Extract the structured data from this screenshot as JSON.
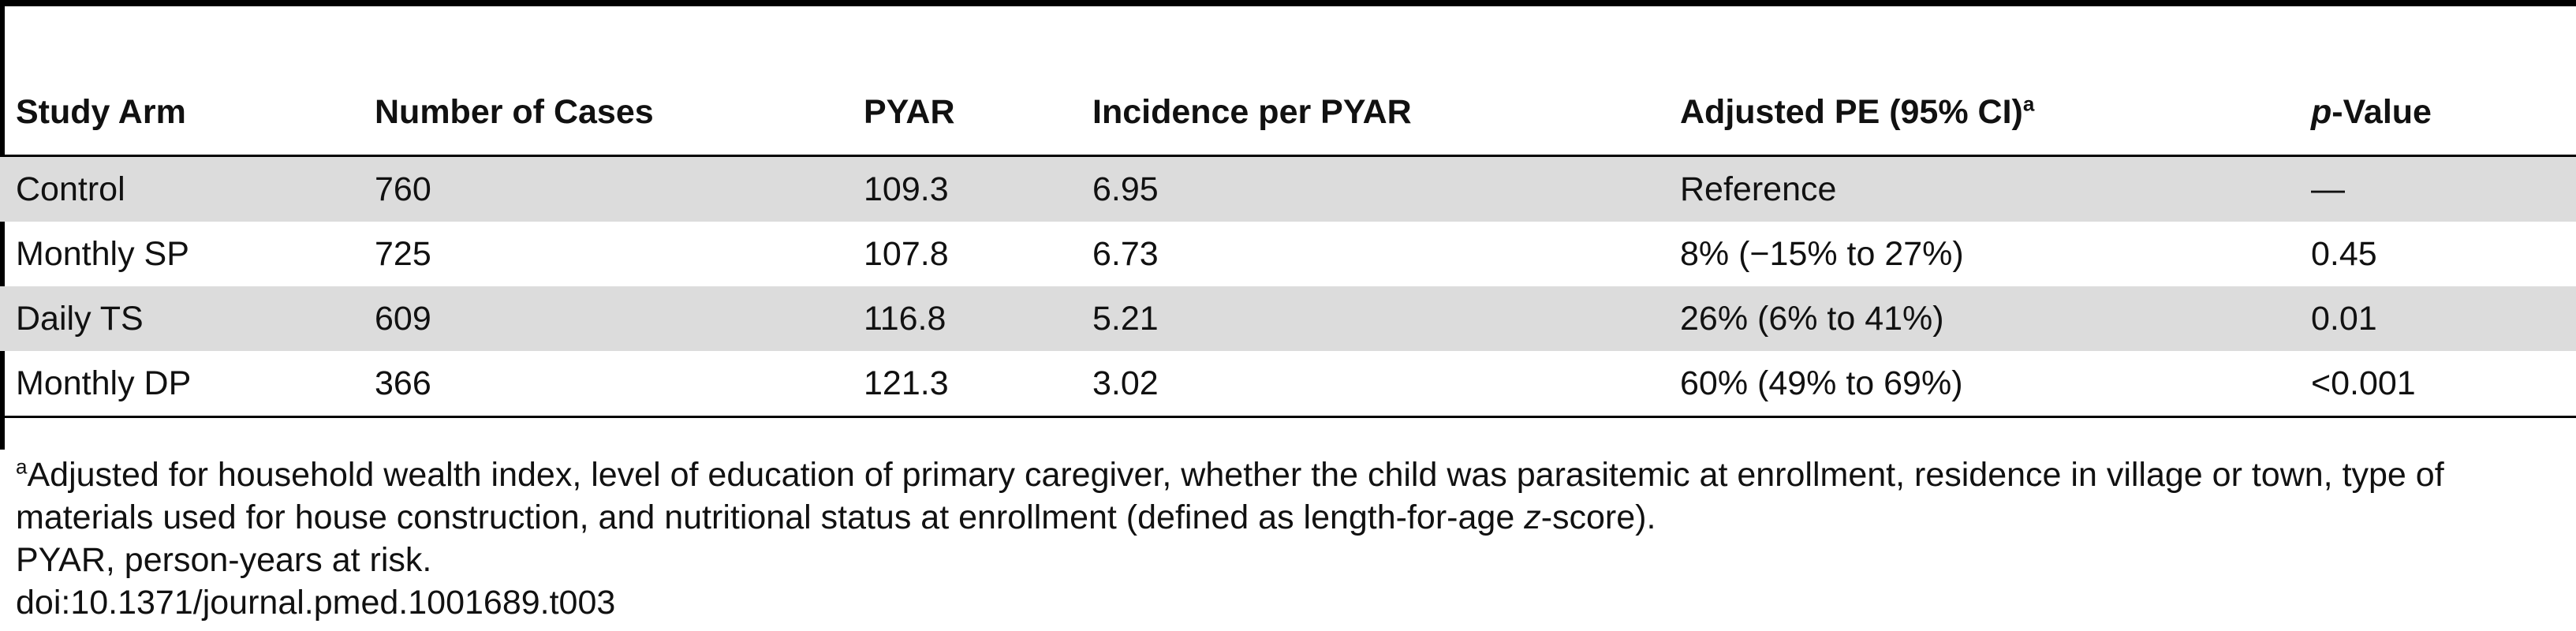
{
  "table": {
    "headers": {
      "study_arm": "Study Arm",
      "cases": "Number of Cases",
      "pyar": "PYAR",
      "incidence": "Incidence per PYAR",
      "pe": "Adjusted PE (95% CI)",
      "pe_sup": "a",
      "p_italic": "p",
      "p_rest": "-Value"
    },
    "rows": [
      {
        "arm": "Control",
        "cases": "760",
        "pyar": "109.3",
        "incidence": "6.95",
        "pe": "Reference",
        "p": "—",
        "shaded": true
      },
      {
        "arm": "Monthly SP",
        "cases": "725",
        "pyar": "107.8",
        "incidence": "6.73",
        "pe": "8% (−15% to 27%)",
        "p": "0.45",
        "shaded": false
      },
      {
        "arm": "Daily TS",
        "cases": "609",
        "pyar": "116.8",
        "incidence": "5.21",
        "pe": "26% (6% to 41%)",
        "p": "0.01",
        "shaded": true
      },
      {
        "arm": "Monthly DP",
        "cases": "366",
        "pyar": "121.3",
        "incidence": "3.02",
        "pe": "60% (49% to 69%)",
        "p": "<0.001",
        "shaded": false
      }
    ]
  },
  "footnotes": {
    "a_sup": "a",
    "a_text_1": "Adjusted for household wealth index, level of education of primary caregiver, whether the child was parasitemic at enrollment, residence in village or town, type of",
    "a_text_2": "materials used for house construction, and nutritional status at enrollment (defined as length-for-age ",
    "a_text_2_italic": "z",
    "a_text_2_end": "-score).",
    "pyar_note": "PYAR, person-years at risk.",
    "doi": "doi:10.1371/journal.pmed.1001689.t003"
  }
}
